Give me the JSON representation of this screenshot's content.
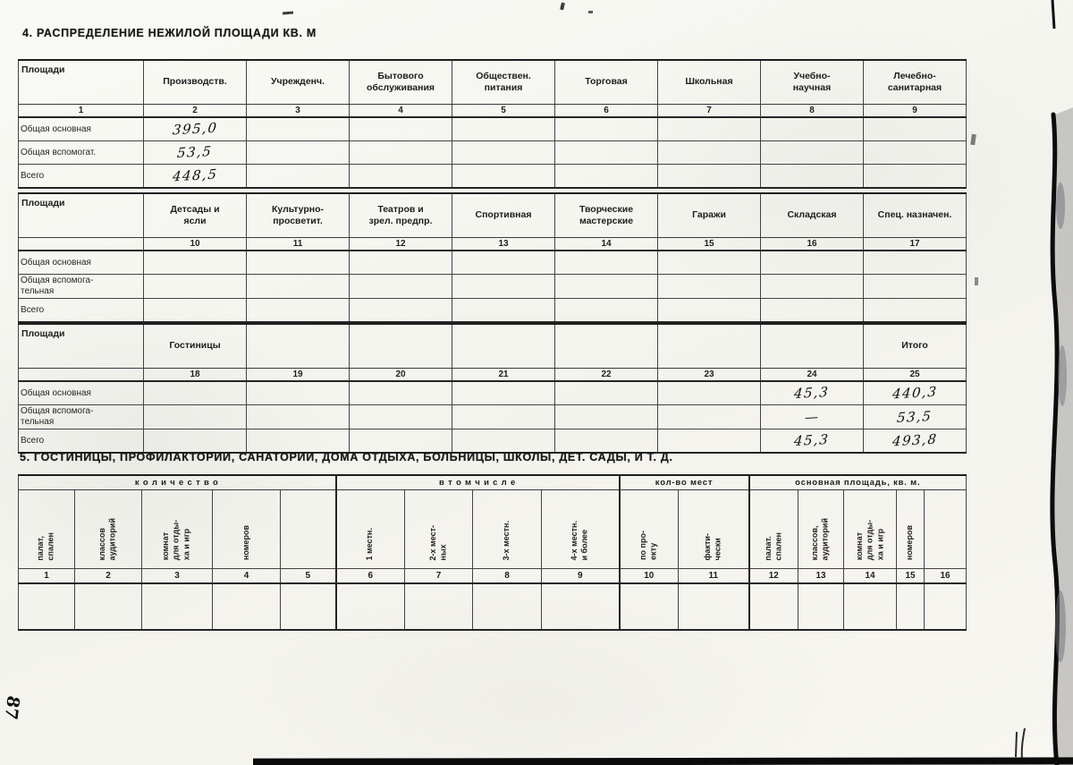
{
  "titles": {
    "section4": "4. РАСПРЕДЕЛЕНИЕ НЕЖИЛОЙ ПЛОЩАДИ КВ. М",
    "section5": "5. ГОСТИНИЦЫ, ПРОФИЛАКТОРИИ,  САНАТОРИИ, ДОМА ОТДЫХА, БОЛЬНИЦЫ, ШКОЛЫ, ДЕТ. САДЫ, И Т. Д."
  },
  "margin_note": "87",
  "table1": {
    "label_header": "Площади",
    "label_num": "1",
    "columns": [
      {
        "label": "Производств.",
        "num": "2"
      },
      {
        "label": "Учрежденч.",
        "num": "3"
      },
      {
        "label": "Бытового\nобслуживания",
        "num": "4"
      },
      {
        "label": "Обществен.\nпитания",
        "num": "5"
      },
      {
        "label": "Торговая",
        "num": "6"
      },
      {
        "label": "Школьная",
        "num": "7"
      },
      {
        "label": "Учебно-\nнаучная",
        "num": "8"
      },
      {
        "label": "Лечебно-\nсанитарная",
        "num": "9"
      }
    ],
    "rows": [
      {
        "label": "Общая основная",
        "cells": [
          "395,0",
          "",
          "",
          "",
          "",
          "",
          "",
          ""
        ]
      },
      {
        "label": "Общая вспомогат.",
        "cells": [
          "53,5",
          "",
          "",
          "",
          "",
          "",
          "",
          ""
        ]
      },
      {
        "label": "Всего",
        "cells": [
          "448,5",
          "",
          "",
          "",
          "",
          "",
          "",
          ""
        ]
      }
    ]
  },
  "table2": {
    "label_header": "Площади",
    "label_num": "",
    "columns": [
      {
        "label": "Детсады и\nясли",
        "num": "10"
      },
      {
        "label": "Культурно-\nпросветит.",
        "num": "11"
      },
      {
        "label": "Театров и\nзрел. предпр.",
        "num": "12"
      },
      {
        "label": "Спортивная",
        "num": "13"
      },
      {
        "label": "Творческие\nмастерские",
        "num": "14"
      },
      {
        "label": "Гаражи",
        "num": "15"
      },
      {
        "label": "Складская",
        "num": "16"
      },
      {
        "label": "Спец. назначен.",
        "num": "17"
      }
    ],
    "rows": [
      {
        "label": "Общая основная",
        "cells": [
          "",
          "",
          "",
          "",
          "",
          "",
          "",
          ""
        ]
      },
      {
        "label": "Общая вспомога-\nтельная",
        "cells": [
          "",
          "",
          "",
          "",
          "",
          "",
          "",
          ""
        ]
      },
      {
        "label": "Всего",
        "cells": [
          "",
          "",
          "",
          "",
          "",
          "",
          "",
          ""
        ]
      }
    ]
  },
  "table3": {
    "label_header": "Площади",
    "label_num": "",
    "columns": [
      {
        "label": "Гостиницы",
        "num": "18"
      },
      {
        "label": "",
        "num": "19"
      },
      {
        "label": "",
        "num": "20"
      },
      {
        "label": "",
        "num": "21"
      },
      {
        "label": "",
        "num": "22"
      },
      {
        "label": "",
        "num": "23"
      },
      {
        "label": "",
        "num": "24"
      },
      {
        "label": "Итого",
        "num": "25"
      }
    ],
    "rows": [
      {
        "label": "Общая основная",
        "cells": [
          "",
          "",
          "",
          "",
          "",
          "",
          "45,3",
          "440,3"
        ]
      },
      {
        "label": "Общая вспомога-\nтельная",
        "cells": [
          "",
          "",
          "",
          "",
          "",
          "",
          "—",
          "53,5"
        ]
      },
      {
        "label": "Всего",
        "cells": [
          "",
          "",
          "",
          "",
          "",
          "",
          "45,3",
          "493,8"
        ]
      }
    ]
  },
  "table4": {
    "groups": [
      {
        "label": "к о л и ч е с т в о",
        "span": 5
      },
      {
        "label": "в  т о м   ч и с л е",
        "span": 4
      },
      {
        "label": "кол-во мест",
        "span": 2
      },
      {
        "label": "основная площадь, кв. м.",
        "span": 5
      }
    ],
    "columns": [
      {
        "label": "палат,\nспален",
        "num": "1"
      },
      {
        "label": "классов\nаудиторий",
        "num": "2"
      },
      {
        "label": "комнат\nдля отды-\nха и игр",
        "num": "3"
      },
      {
        "label": "номеров",
        "num": "4"
      },
      {
        "label": "",
        "num": "5"
      },
      {
        "label": "1 местн.",
        "num": "6"
      },
      {
        "label": "2-х мест-\nных",
        "num": "7"
      },
      {
        "label": "3-х местн.",
        "num": "8"
      },
      {
        "label": "4-х местн.\nи более",
        "num": "9"
      },
      {
        "label": "по про-\nекту",
        "num": "10"
      },
      {
        "label": "факти-\nчески",
        "num": "11"
      },
      {
        "label": "палат.\nспален",
        "num": "12"
      },
      {
        "label": "классов,\nаудиторий",
        "num": "13"
      },
      {
        "label": "комнат\nдля отды-\nха и игр",
        "num": "14"
      },
      {
        "label": "номеров",
        "num": "15"
      },
      {
        "label": "",
        "num": "16"
      }
    ]
  }
}
